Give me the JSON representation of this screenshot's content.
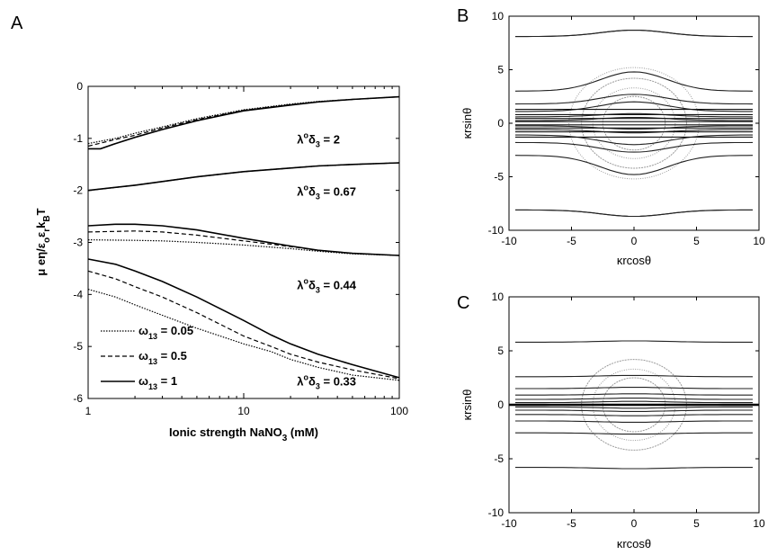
{
  "chart_data": [
    {
      "panel": "A",
      "type": "line",
      "x_scale": "log",
      "xlim": [
        1,
        100
      ],
      "ylim": [
        -6,
        0
      ],
      "x_ticks": [
        1,
        10,
        100
      ],
      "y_ticks": [
        0,
        -1,
        -2,
        -3,
        -4,
        -5,
        -6
      ],
      "x_tick_labels": [
        "1",
        "10",
        "100"
      ],
      "y_tick_labels": [
        "0",
        "-1",
        "-2",
        "-3",
        "-4",
        "-5",
        "-6"
      ],
      "xlabel": {
        "main": "Ionic strength NaNO",
        "sub": "3",
        "tail": " (mM)"
      },
      "ylabel": {
        "pre": "μ eη/ε",
        "s1": "o",
        "m1": "ε",
        "s2": "r",
        "m2": "k",
        "s3": "B",
        "post": "T"
      },
      "legend": {
        "placement": "lower-left",
        "entries": [
          {
            "sym": "ω",
            "sub": "13",
            "text": " = 0.05",
            "dash": "1.5,1.5"
          },
          {
            "sym": "ω",
            "sub": "13",
            "text": " = 0.5",
            "dash": "5,3"
          },
          {
            "sym": "ω",
            "sub": "13",
            "text": " = 1",
            "dash": ""
          }
        ]
      },
      "annotations": [
        {
          "sup": "o",
          "text": " = 2",
          "x": 22,
          "y": -1.1
        },
        {
          "sup": "o",
          "text": " = 0.67",
          "x": 22,
          "y": -2.1
        },
        {
          "sup": "o",
          "text": " = 0.44",
          "x": 22,
          "y": -3.9
        },
        {
          "sup": "o",
          "text": " = 0.33",
          "x": 22,
          "y": -5.75
        }
      ],
      "groups": [
        {
          "label": "λoδ3 = 2",
          "series": [
            {
              "omega": 0.05,
              "x": [
                1,
                1.5,
                2,
                3,
                5,
                10,
                20,
                30,
                50,
                100
              ],
              "y": [
                -1.1,
                -1.0,
                -0.9,
                -0.78,
                -0.62,
                -0.45,
                -0.34,
                -0.29,
                -0.25,
                -0.2
              ]
            },
            {
              "omega": 0.5,
              "x": [
                1,
                1.5,
                2,
                3,
                5,
                10,
                20,
                30,
                50,
                100
              ],
              "y": [
                -1.15,
                -1.02,
                -0.94,
                -0.8,
                -0.64,
                -0.46,
                -0.35,
                -0.3,
                -0.25,
                -0.2
              ]
            },
            {
              "omega": 1,
              "x": [
                1,
                1.2,
                1.5,
                2,
                3,
                5,
                10,
                20,
                30,
                50,
                100
              ],
              "y": [
                -1.2,
                -1.2,
                -1.1,
                -0.98,
                -0.83,
                -0.66,
                -0.47,
                -0.36,
                -0.3,
                -0.25,
                -0.2
              ]
            }
          ]
        },
        {
          "label": "λoδ3 = 0.67",
          "series": [
            {
              "omega": 0.05,
              "x": [
                1,
                2,
                3,
                5,
                10,
                20,
                30,
                50,
                100
              ],
              "y": [
                -2.0,
                -1.9,
                -1.83,
                -1.74,
                -1.64,
                -1.57,
                -1.53,
                -1.5,
                -1.47
              ]
            },
            {
              "omega": 0.5,
              "x": [
                1,
                2,
                3,
                5,
                10,
                20,
                30,
                50,
                100
              ],
              "y": [
                -2.0,
                -1.9,
                -1.83,
                -1.74,
                -1.64,
                -1.57,
                -1.53,
                -1.5,
                -1.47
              ]
            },
            {
              "omega": 1,
              "x": [
                1,
                2,
                3,
                5,
                10,
                20,
                30,
                50,
                100
              ],
              "y": [
                -2.0,
                -1.9,
                -1.83,
                -1.74,
                -1.64,
                -1.57,
                -1.53,
                -1.5,
                -1.47
              ]
            }
          ]
        },
        {
          "label": "λoδ3 = 0.44",
          "series": [
            {
              "omega": 0.05,
              "x": [
                1,
                2,
                3,
                5,
                10,
                20,
                30,
                50,
                100
              ],
              "y": [
                -2.95,
                -2.96,
                -2.97,
                -3.0,
                -3.05,
                -3.12,
                -3.17,
                -3.22,
                -3.25
              ]
            },
            {
              "omega": 0.5,
              "x": [
                1,
                2,
                3,
                5,
                10,
                20,
                30,
                50,
                100
              ],
              "y": [
                -2.8,
                -2.78,
                -2.8,
                -2.86,
                -2.97,
                -3.08,
                -3.15,
                -3.21,
                -3.25
              ]
            },
            {
              "omega": 1,
              "x": [
                1,
                1.5,
                2,
                3,
                5,
                10,
                20,
                30,
                50,
                100
              ],
              "y": [
                -2.68,
                -2.65,
                -2.65,
                -2.68,
                -2.76,
                -2.92,
                -3.07,
                -3.15,
                -3.21,
                -3.25
              ]
            }
          ]
        },
        {
          "label": "λoδ3 = 0.33",
          "series": [
            {
              "omega": 0.05,
              "x": [
                1,
                1.5,
                2,
                3,
                5,
                10,
                15,
                20,
                30,
                50,
                100
              ],
              "y": [
                -3.9,
                -4.05,
                -4.2,
                -4.4,
                -4.65,
                -4.95,
                -5.1,
                -5.25,
                -5.4,
                -5.55,
                -5.65
              ]
            },
            {
              "omega": 0.5,
              "x": [
                1,
                1.5,
                2,
                3,
                5,
                10,
                15,
                20,
                30,
                50,
                100
              ],
              "y": [
                -3.55,
                -3.7,
                -3.85,
                -4.05,
                -4.35,
                -4.8,
                -5.0,
                -5.15,
                -5.3,
                -5.45,
                -5.62
              ]
            },
            {
              "omega": 1,
              "x": [
                1,
                1.5,
                2,
                3,
                5,
                10,
                15,
                20,
                30,
                50,
                100
              ],
              "y": [
                -3.32,
                -3.42,
                -3.55,
                -3.75,
                -4.05,
                -4.5,
                -4.78,
                -4.95,
                -5.15,
                -5.35,
                -5.6
              ]
            }
          ]
        }
      ]
    },
    {
      "panel": "B",
      "type": "contour",
      "xlim": [
        -10,
        10
      ],
      "ylim": [
        -10,
        10
      ],
      "x_ticks": [
        -10,
        -5,
        0,
        5,
        10
      ],
      "y_ticks": [
        -10,
        -5,
        0,
        5,
        10
      ],
      "x_tick_labels": [
        "-10",
        "-5",
        "0",
        "5",
        "10"
      ],
      "y_tick_labels": [
        "-10",
        "-5",
        "0",
        "5",
        "10"
      ],
      "xlabel": "κrcosθ",
      "ylabel": "κrsinθ",
      "streamlines_far_y": [
        8.5,
        5.0,
        3.0,
        1.8,
        1.1,
        0.6,
        0.25
      ],
      "streamlines_core_y": [
        1.3,
        0.8,
        0.45,
        0.15
      ],
      "circle_radii": [
        2.5,
        3.3,
        4.2,
        5.2
      ],
      "circle_color": "#9a9a9a"
    },
    {
      "panel": "C",
      "type": "contour",
      "xlim": [
        -10,
        10
      ],
      "ylim": [
        -10,
        10
      ],
      "x_ticks": [
        -10,
        -5,
        0,
        5,
        10
      ],
      "y_ticks": [
        -10,
        -5,
        0,
        5,
        10
      ],
      "x_tick_labels": [
        "-10",
        "-5",
        "0",
        "5",
        "10"
      ],
      "y_tick_labels": [
        "-10",
        "-5",
        "0",
        "5",
        "10"
      ],
      "xlabel": "κrcosθ",
      "ylabel": "κrsinθ",
      "streamlines_y": [
        5.8,
        2.6,
        1.5,
        0.9,
        0.5,
        0.2
      ],
      "circle_radii": [
        2.5,
        3.3,
        4.2
      ],
      "circle_color": "#9a9a9a"
    }
  ]
}
